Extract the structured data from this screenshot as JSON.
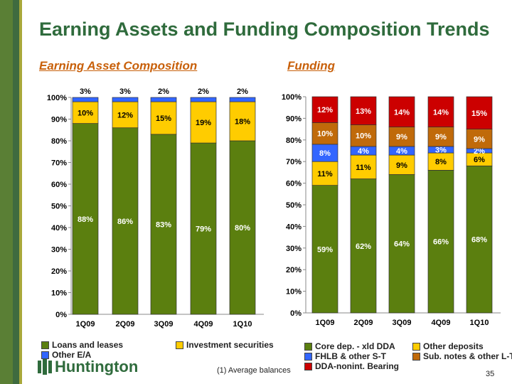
{
  "title": "Earning Assets and Funding Composition Trends",
  "footnote": "(1)  Average balances",
  "page_number": "35",
  "logo": "Huntington",
  "chart_data": [
    {
      "type": "bar",
      "stacked": true,
      "title": "Earning Asset Composition",
      "categories": [
        "1Q09",
        "2Q09",
        "3Q09",
        "4Q09",
        "1Q10"
      ],
      "ylim": [
        0,
        100
      ],
      "yticks": [
        "0%",
        "10%",
        "20%",
        "30%",
        "40%",
        "50%",
        "60%",
        "70%",
        "80%",
        "90%",
        "100%"
      ],
      "legend": "bottom",
      "series": [
        {
          "name": "Loans and leases",
          "color": "#5b7f0f",
          "label_color": "#ffffff",
          "values": [
            88,
            86,
            83,
            79,
            80
          ]
        },
        {
          "name": "Investment securities",
          "color": "#ffcc00",
          "label_color": "#000000",
          "values": [
            10,
            12,
            15,
            19,
            18
          ]
        },
        {
          "name": "Other E/A",
          "color": "#3366ff",
          "label_color": "#000000",
          "label_outside": true,
          "values": [
            3,
            3,
            2,
            2,
            2
          ]
        }
      ]
    },
    {
      "type": "bar",
      "stacked": true,
      "title": "Funding",
      "categories": [
        "1Q09",
        "2Q09",
        "3Q09",
        "4Q09",
        "1Q10"
      ],
      "ylim": [
        0,
        100
      ],
      "yticks": [
        "0%",
        "10%",
        "20%",
        "30%",
        "40%",
        "50%",
        "60%",
        "70%",
        "80%",
        "90%",
        "100%"
      ],
      "legend": "bottom",
      "series": [
        {
          "name": "Core dep. - xld DDA",
          "color": "#5b7f0f",
          "label_color": "#ffffff",
          "values": [
            59,
            62,
            64,
            66,
            68
          ]
        },
        {
          "name": "Other deposits",
          "color": "#ffcc00",
          "label_color": "#000000",
          "values": [
            11,
            11,
            9,
            8,
            6
          ]
        },
        {
          "name": "FHLB & other S-T",
          "color": "#3366ff",
          "label_color": "#ffffff",
          "values": [
            8,
            4,
            4,
            3,
            2
          ]
        },
        {
          "name": "Sub. notes & other L-T",
          "color": "#c06a0a",
          "label_color": "#ffffff",
          "values": [
            10,
            10,
            9,
            9,
            9
          ]
        },
        {
          "name": "DDA-nonint. Bearing",
          "color": "#cc0000",
          "label_color": "#ffffff",
          "values": [
            12,
            13,
            14,
            14,
            15
          ]
        }
      ]
    }
  ]
}
